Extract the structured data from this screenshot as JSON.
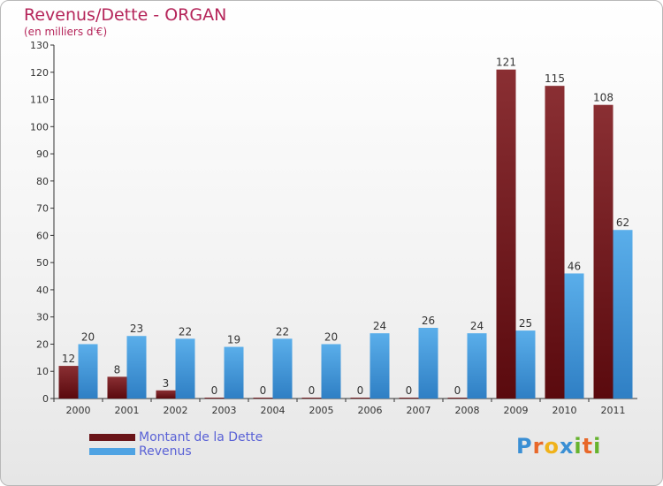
{
  "chart_data": {
    "type": "bar",
    "title": "Revenus/Dette - ORGAN",
    "subtitle": "(en milliers d'€)",
    "categories": [
      "2000",
      "2001",
      "2002",
      "2003",
      "2004",
      "2005",
      "2006",
      "2007",
      "2008",
      "2009",
      "2010",
      "2011"
    ],
    "series": [
      {
        "name": "Montant de la Dette",
        "color": "#7a1a1f",
        "values": [
          12,
          8,
          3,
          0,
          0,
          0,
          0,
          0,
          0,
          121,
          115,
          108
        ]
      },
      {
        "name": "Revenus",
        "color": "#4fa3e3",
        "values": [
          20,
          23,
          22,
          19,
          22,
          20,
          24,
          26,
          24,
          25,
          46,
          62
        ]
      }
    ],
    "ylim": [
      0,
      130
    ],
    "yticks": [
      0,
      10,
      20,
      30,
      40,
      50,
      60,
      70,
      80,
      90,
      100,
      110,
      120,
      130
    ],
    "grid": false,
    "legend_position": "bottom-left"
  },
  "logo": {
    "letters": [
      "P",
      "r",
      "o",
      "x",
      "i",
      "t",
      "i"
    ],
    "colors": [
      "#3a8fd4",
      "#e8682a",
      "#f0b21a",
      "#3a8fd4",
      "#66b32e",
      "#e8682a",
      "#66b32e"
    ]
  }
}
